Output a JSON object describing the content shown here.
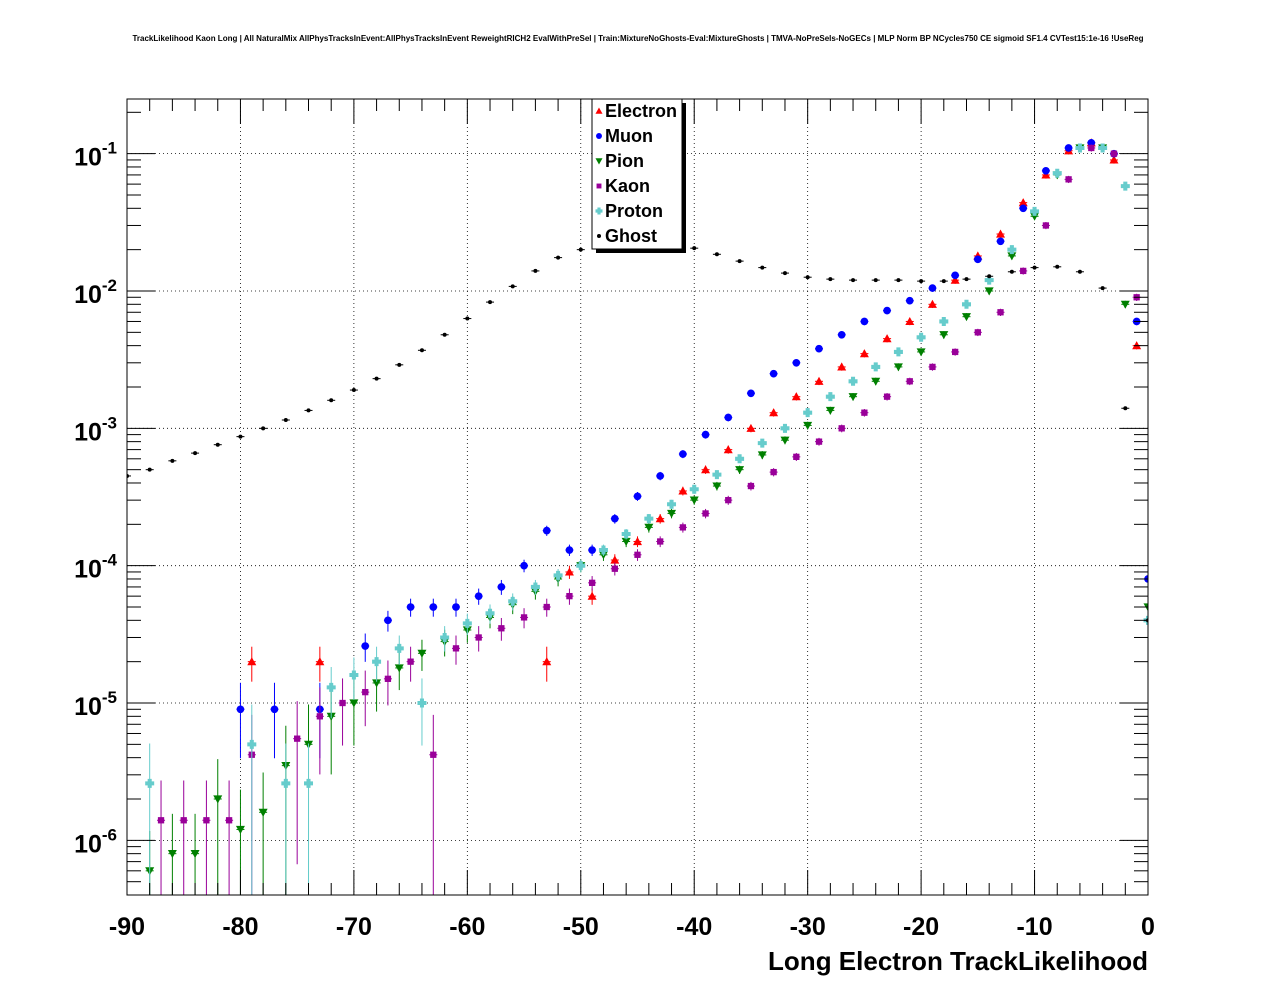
{
  "chart_data": {
    "type": "scatter",
    "title": "TrackLikelihood Kaon Long | All NaturalMix AllPhysTracksInEvent:AllPhysTracksInEvent ReweightRICH2 EvalWithPreSel | Train:MixtureNoGhosts-Eval:MixtureGhosts | TMVA-NoPreSels-NoGECs | MLP Norm BP NCycles750 CE sigmoid SF1.4 CVTest15:1e-16 !UseReg",
    "xlabel": "Long Electron TrackLikelihood",
    "ylabel": "",
    "xlim": [
      -90,
      0
    ],
    "ylim": [
      4e-07,
      0.25
    ],
    "yscale": "log",
    "grid": true,
    "x_ticks": [
      "-90",
      "-80",
      "-70",
      "-60",
      "-50",
      "-40",
      "-30",
      "-20",
      "-10",
      "0"
    ],
    "y_ticks": [
      {
        "base": "10",
        "exp": "-6"
      },
      {
        "base": "10",
        "exp": "-5"
      },
      {
        "base": "10",
        "exp": "-4"
      },
      {
        "base": "10",
        "exp": "-3"
      },
      {
        "base": "10",
        "exp": "-2"
      },
      {
        "base": "10",
        "exp": "-1"
      }
    ],
    "legend_position": "top-center",
    "series": [
      {
        "name": "Electron",
        "color": "#ff0000",
        "marker": "triangle-up",
        "x": [
          -79,
          -73,
          -53,
          -51,
          -49,
          -47,
          -45,
          -43,
          -41,
          -39,
          -37,
          -35,
          -33,
          -31,
          -29,
          -27,
          -25,
          -23,
          -21,
          -19,
          -17,
          -15,
          -13,
          -11,
          -9,
          -7,
          -5,
          -3,
          -1
        ],
        "y": [
          2e-05,
          2e-05,
          2e-05,
          9e-05,
          6e-05,
          0.00011,
          0.00015,
          0.00022,
          0.00035,
          0.0005,
          0.0007,
          0.001,
          0.0013,
          0.0017,
          0.0022,
          0.0028,
          0.0035,
          0.0045,
          0.006,
          0.008,
          0.012,
          0.018,
          0.026,
          0.044,
          0.07,
          0.105,
          0.12,
          0.09,
          0.004
        ]
      },
      {
        "name": "Muon",
        "color": "#0000ff",
        "marker": "circle",
        "x": [
          -80,
          -77,
          -73,
          -69,
          -67,
          -65,
          -63,
          -61,
          -59,
          -57,
          -55,
          -53,
          -51,
          -49,
          -47,
          -45,
          -43,
          -41,
          -39,
          -37,
          -35,
          -33,
          -31,
          -29,
          -27,
          -25,
          -23,
          -21,
          -19,
          -17,
          -15,
          -13,
          -11,
          -9,
          -7,
          -5,
          -3,
          -1,
          0
        ],
        "y": [
          9e-06,
          9e-06,
          9e-06,
          2.6e-05,
          4e-05,
          5e-05,
          5e-05,
          5e-05,
          6e-05,
          7e-05,
          0.0001,
          0.00018,
          0.00013,
          0.00013,
          0.00022,
          0.00032,
          0.00045,
          0.00065,
          0.0009,
          0.0012,
          0.0018,
          0.0025,
          0.003,
          0.0038,
          0.0048,
          0.006,
          0.0072,
          0.0085,
          0.0105,
          0.013,
          0.017,
          0.023,
          0.04,
          0.075,
          0.11,
          0.12,
          0.1,
          0.006,
          8e-05
        ]
      },
      {
        "name": "Pion",
        "color": "#008000",
        "marker": "triangle-down",
        "x": [
          -88,
          -86,
          -84,
          -82,
          -80,
          -78,
          -76,
          -74,
          -72,
          -70,
          -68,
          -66,
          -64,
          -62,
          -60,
          -58,
          -56,
          -54,
          -52,
          -50,
          -48,
          -46,
          -44,
          -42,
          -40,
          -38,
          -36,
          -34,
          -32,
          -30,
          -28,
          -26,
          -24,
          -22,
          -20,
          -18,
          -16,
          -14,
          -12,
          -10,
          -8,
          -6,
          -4,
          -2,
          0
        ],
        "y": [
          6e-07,
          8e-07,
          8e-07,
          2e-06,
          1.2e-06,
          1.6e-06,
          3.5e-06,
          5e-06,
          8e-06,
          1e-05,
          1.4e-05,
          1.8e-05,
          2.3e-05,
          2.8e-05,
          3.4e-05,
          4.2e-05,
          5.2e-05,
          6.5e-05,
          8e-05,
          0.0001,
          0.00012,
          0.00015,
          0.00019,
          0.00024,
          0.0003,
          0.00038,
          0.0005,
          0.00064,
          0.00082,
          0.00105,
          0.00135,
          0.0017,
          0.0022,
          0.0028,
          0.0036,
          0.0048,
          0.0065,
          0.01,
          0.018,
          0.035,
          0.07,
          0.11,
          0.11,
          0.008,
          5e-05
        ]
      },
      {
        "name": "Kaon",
        "color": "#990099",
        "marker": "square",
        "x": [
          -87,
          -85,
          -83,
          -81,
          -79,
          -75,
          -73,
          -71,
          -69,
          -67,
          -65,
          -63,
          -61,
          -59,
          -57,
          -55,
          -53,
          -51,
          -49,
          -47,
          -45,
          -43,
          -41,
          -39,
          -37,
          -35,
          -33,
          -31,
          -29,
          -27,
          -25,
          -23,
          -21,
          -19,
          -17,
          -15,
          -13,
          -11,
          -9,
          -7,
          -5,
          -3,
          -1
        ],
        "y": [
          1.4e-06,
          1.4e-06,
          1.4e-06,
          1.4e-06,
          4.2e-06,
          5.5e-06,
          8e-06,
          1e-05,
          1.2e-05,
          1.5e-05,
          2e-05,
          4.2e-06,
          2.5e-05,
          3e-05,
          3.5e-05,
          4.2e-05,
          5e-05,
          6e-05,
          7.5e-05,
          9.5e-05,
          0.00012,
          0.00015,
          0.00019,
          0.00024,
          0.0003,
          0.00038,
          0.00048,
          0.00062,
          0.0008,
          0.001,
          0.0013,
          0.0017,
          0.0022,
          0.0028,
          0.0036,
          0.005,
          0.007,
          0.014,
          0.03,
          0.065,
          0.11,
          0.1,
          0.009
        ]
      },
      {
        "name": "Proton",
        "color": "#66cccc",
        "marker": "cross",
        "x": [
          -88,
          -79,
          -76,
          -74,
          -72,
          -70,
          -68,
          -66,
          -64,
          -62,
          -60,
          -58,
          -56,
          -54,
          -52,
          -50,
          -48,
          -46,
          -44,
          -42,
          -40,
          -38,
          -36,
          -34,
          -32,
          -30,
          -28,
          -26,
          -24,
          -22,
          -20,
          -18,
          -16,
          -14,
          -12,
          -10,
          -8,
          -6,
          -4,
          -2,
          0
        ],
        "y": [
          2.6e-06,
          5e-06,
          2.6e-06,
          2.6e-06,
          1.3e-05,
          1.6e-05,
          2e-05,
          2.5e-05,
          1e-05,
          3e-05,
          3.8e-05,
          4.5e-05,
          5.5e-05,
          7e-05,
          8.5e-05,
          0.0001,
          0.00013,
          0.00017,
          0.00022,
          0.00028,
          0.00036,
          0.00046,
          0.0006,
          0.00078,
          0.001,
          0.0013,
          0.0017,
          0.0022,
          0.0028,
          0.0036,
          0.0046,
          0.006,
          0.008,
          0.012,
          0.02,
          0.038,
          0.072,
          0.11,
          0.11,
          0.058,
          4e-05
        ]
      },
      {
        "name": "Ghost",
        "color": "#000000",
        "marker": "dot",
        "x": [
          -90,
          -88,
          -86,
          -84,
          -82,
          -80,
          -78,
          -76,
          -74,
          -72,
          -70,
          -68,
          -66,
          -64,
          -62,
          -60,
          -58,
          -56,
          -54,
          -52,
          -50,
          -48,
          -46,
          -44,
          -42,
          -40,
          -38,
          -36,
          -34,
          -32,
          -30,
          -28,
          -26,
          -24,
          -22,
          -20,
          -18,
          -16,
          -14,
          -12,
          -10,
          -8,
          -6,
          -4,
          -2,
          0
        ],
        "y": [
          0.00045,
          0.0005,
          0.00058,
          0.00066,
          0.00076,
          0.00087,
          0.001,
          0.00115,
          0.00135,
          0.0016,
          0.0019,
          0.0023,
          0.0029,
          0.0037,
          0.0048,
          0.0063,
          0.0083,
          0.0108,
          0.014,
          0.0175,
          0.02,
          0.0215,
          0.0225,
          0.0225,
          0.022,
          0.0205,
          0.0185,
          0.0165,
          0.0148,
          0.0135,
          0.0126,
          0.0122,
          0.012,
          0.012,
          0.012,
          0.0118,
          0.0118,
          0.0122,
          0.0128,
          0.0138,
          0.0148,
          0.015,
          0.0138,
          0.0105,
          0.0014,
          4e-05
        ]
      }
    ]
  }
}
